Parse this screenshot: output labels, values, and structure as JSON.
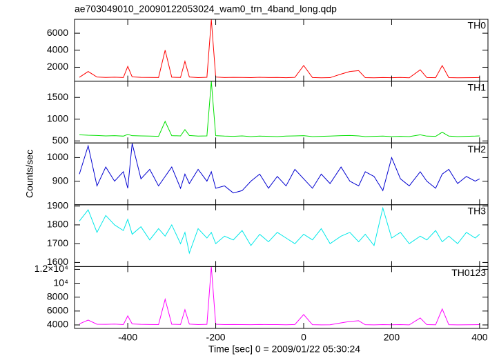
{
  "title": "ae703049010_20090122053024_wam0_trn_4band_long.qdp",
  "ylabel": "Counts/sec",
  "xlabel": "Time [sec] 0 = 2009/01/22 05:30:24",
  "xlim": [
    -521,
    419
  ],
  "xticks": [
    -400,
    -200,
    0,
    200,
    400
  ],
  "chart_data": [
    {
      "type": "line",
      "x": [
        -510,
        -490,
        -470,
        -450,
        -430,
        -410,
        -400,
        -390,
        -370,
        -350,
        -330,
        -315,
        -300,
        -280,
        -270,
        -260,
        -240,
        -220,
        -210,
        -200,
        -180,
        -160,
        -140,
        -120,
        -100,
        -80,
        -60,
        -40,
        -20,
        0,
        20,
        40,
        60,
        85,
        105,
        125,
        140,
        160,
        180,
        200,
        220,
        240,
        265,
        280,
        300,
        315,
        330,
        350,
        370,
        390,
        400
      ],
      "series": [
        {
          "name": "TH0",
          "color": "#ff0000",
          "values": [
            820,
            1500,
            850,
            800,
            830,
            790,
            2100,
            870,
            810,
            800,
            790,
            4000,
            830,
            800,
            2700,
            850,
            780,
            820,
            7600,
            850,
            790,
            810,
            800,
            780,
            820,
            790,
            800,
            770,
            810,
            2200,
            790,
            760,
            780,
            1200,
            1500,
            1600,
            780,
            760,
            790,
            770,
            800,
            760,
            1700,
            790,
            770,
            2200,
            780,
            760,
            770,
            780,
            790
          ]
        }
      ],
      "ylim": [
        370,
        7630
      ],
      "yticks": [
        2000,
        4000,
        6000
      ]
    },
    {
      "type": "line",
      "x": [
        -510,
        -490,
        -470,
        -450,
        -430,
        -410,
        -400,
        -390,
        -370,
        -350,
        -330,
        -315,
        -300,
        -280,
        -270,
        -260,
        -240,
        -220,
        -210,
        -200,
        -180,
        -160,
        -140,
        -120,
        -100,
        -80,
        -60,
        -40,
        -20,
        0,
        20,
        40,
        60,
        85,
        105,
        125,
        140,
        160,
        180,
        200,
        220,
        240,
        265,
        280,
        300,
        315,
        330,
        350,
        370,
        390,
        400
      ],
      "series": [
        {
          "name": "TH1",
          "color": "#00e000",
          "values": [
            640,
            630,
            625,
            615,
            620,
            610,
            650,
            620,
            615,
            610,
            605,
            950,
            620,
            615,
            760,
            625,
            610,
            615,
            1870,
            620,
            610,
            605,
            615,
            600,
            610,
            605,
            600,
            610,
            615,
            620,
            600,
            605,
            610,
            620,
            625,
            615,
            600,
            605,
            610,
            600,
            605,
            600,
            640,
            610,
            605,
            700,
            610,
            600,
            605,
            610,
            615
          ]
        }
      ],
      "ylim": [
        453,
        1875
      ],
      "yticks": [
        500,
        1000,
        1500
      ]
    },
    {
      "type": "line",
      "x": [
        -510,
        -490,
        -470,
        -450,
        -430,
        -410,
        -400,
        -390,
        -370,
        -350,
        -330,
        -315,
        -300,
        -280,
        -270,
        -260,
        -240,
        -220,
        -210,
        -200,
        -180,
        -160,
        -140,
        -120,
        -100,
        -80,
        -60,
        -40,
        -20,
        0,
        20,
        40,
        60,
        85,
        105,
        125,
        140,
        160,
        180,
        200,
        220,
        240,
        265,
        280,
        300,
        315,
        330,
        350,
        370,
        390,
        400
      ],
      "series": [
        {
          "name": "TH2",
          "color": "#0000d0",
          "values": [
            930,
            1050,
            880,
            960,
            900,
            940,
            870,
            1060,
            910,
            950,
            880,
            920,
            960,
            870,
            930,
            890,
            950,
            900,
            940,
            870,
            880,
            850,
            860,
            900,
            930,
            870,
            920,
            880,
            950,
            910,
            870,
            930,
            890,
            960,
            900,
            880,
            940,
            920,
            860,
            1000,
            910,
            880,
            940,
            900,
            870,
            930,
            950,
            890,
            920,
            900,
            910
          ]
        }
      ],
      "ylim": [
        800,
        1062
      ],
      "yticks": [
        900,
        1000
      ]
    },
    {
      "type": "line",
      "x": [
        -510,
        -490,
        -470,
        -450,
        -430,
        -410,
        -400,
        -390,
        -370,
        -350,
        -330,
        -315,
        -300,
        -280,
        -270,
        -260,
        -240,
        -220,
        -210,
        -200,
        -180,
        -160,
        -140,
        -120,
        -100,
        -80,
        -60,
        -40,
        -20,
        0,
        20,
        40,
        60,
        85,
        105,
        125,
        140,
        160,
        180,
        200,
        220,
        240,
        265,
        280,
        300,
        315,
        330,
        350,
        370,
        390,
        400
      ],
      "series": [
        {
          "name": "TH3",
          "color": "#00e8e8",
          "values": [
            1820,
            1880,
            1760,
            1850,
            1800,
            1770,
            1830,
            1750,
            1790,
            1720,
            1780,
            1740,
            1800,
            1700,
            1760,
            1650,
            1780,
            1730,
            1760,
            1700,
            1740,
            1720,
            1770,
            1690,
            1750,
            1710,
            1760,
            1730,
            1700,
            1750,
            1720,
            1780,
            1700,
            1740,
            1760,
            1710,
            1750,
            1690,
            1890,
            1730,
            1760,
            1700,
            1740,
            1720,
            1770,
            1710,
            1740,
            1700,
            1760,
            1730,
            1750
          ]
        }
      ],
      "ylim": [
        1578,
        1907
      ],
      "yticks": [
        1600,
        1700,
        1800,
        1900
      ]
    },
    {
      "type": "line",
      "x": [
        -510,
        -490,
        -470,
        -450,
        -430,
        -410,
        -400,
        -390,
        -370,
        -350,
        -330,
        -315,
        -300,
        -280,
        -270,
        -260,
        -240,
        -220,
        -210,
        -200,
        -180,
        -160,
        -140,
        -120,
        -100,
        -80,
        -60,
        -40,
        -20,
        0,
        20,
        40,
        60,
        85,
        105,
        125,
        140,
        160,
        180,
        200,
        220,
        240,
        265,
        280,
        300,
        315,
        330,
        350,
        370,
        390,
        400
      ],
      "series": [
        {
          "name": "TH0123",
          "color": "#ff00ff",
          "values": [
            4150,
            4700,
            4100,
            4080,
            4120,
            4050,
            5300,
            4150,
            4080,
            4060,
            4050,
            7700,
            4100,
            4060,
            6200,
            4120,
            4050,
            4080,
            12400,
            4100,
            4050,
            4060,
            4040,
            4030,
            4060,
            4040,
            4050,
            4020,
            4060,
            5500,
            4030,
            4010,
            4020,
            4300,
            4500,
            4600,
            4030,
            4010,
            4040,
            4020,
            4050,
            4010,
            5000,
            4040,
            4020,
            6300,
            4030,
            4010,
            4020,
            4030,
            4040
          ]
        }
      ],
      "ylim": [
        3500,
        12400
      ],
      "yticks": [
        4000,
        6000,
        8000,
        {
          "value": 10000,
          "label": "10⁴"
        },
        {
          "value": 12000,
          "label": "1.2×10⁴"
        }
      ]
    }
  ]
}
